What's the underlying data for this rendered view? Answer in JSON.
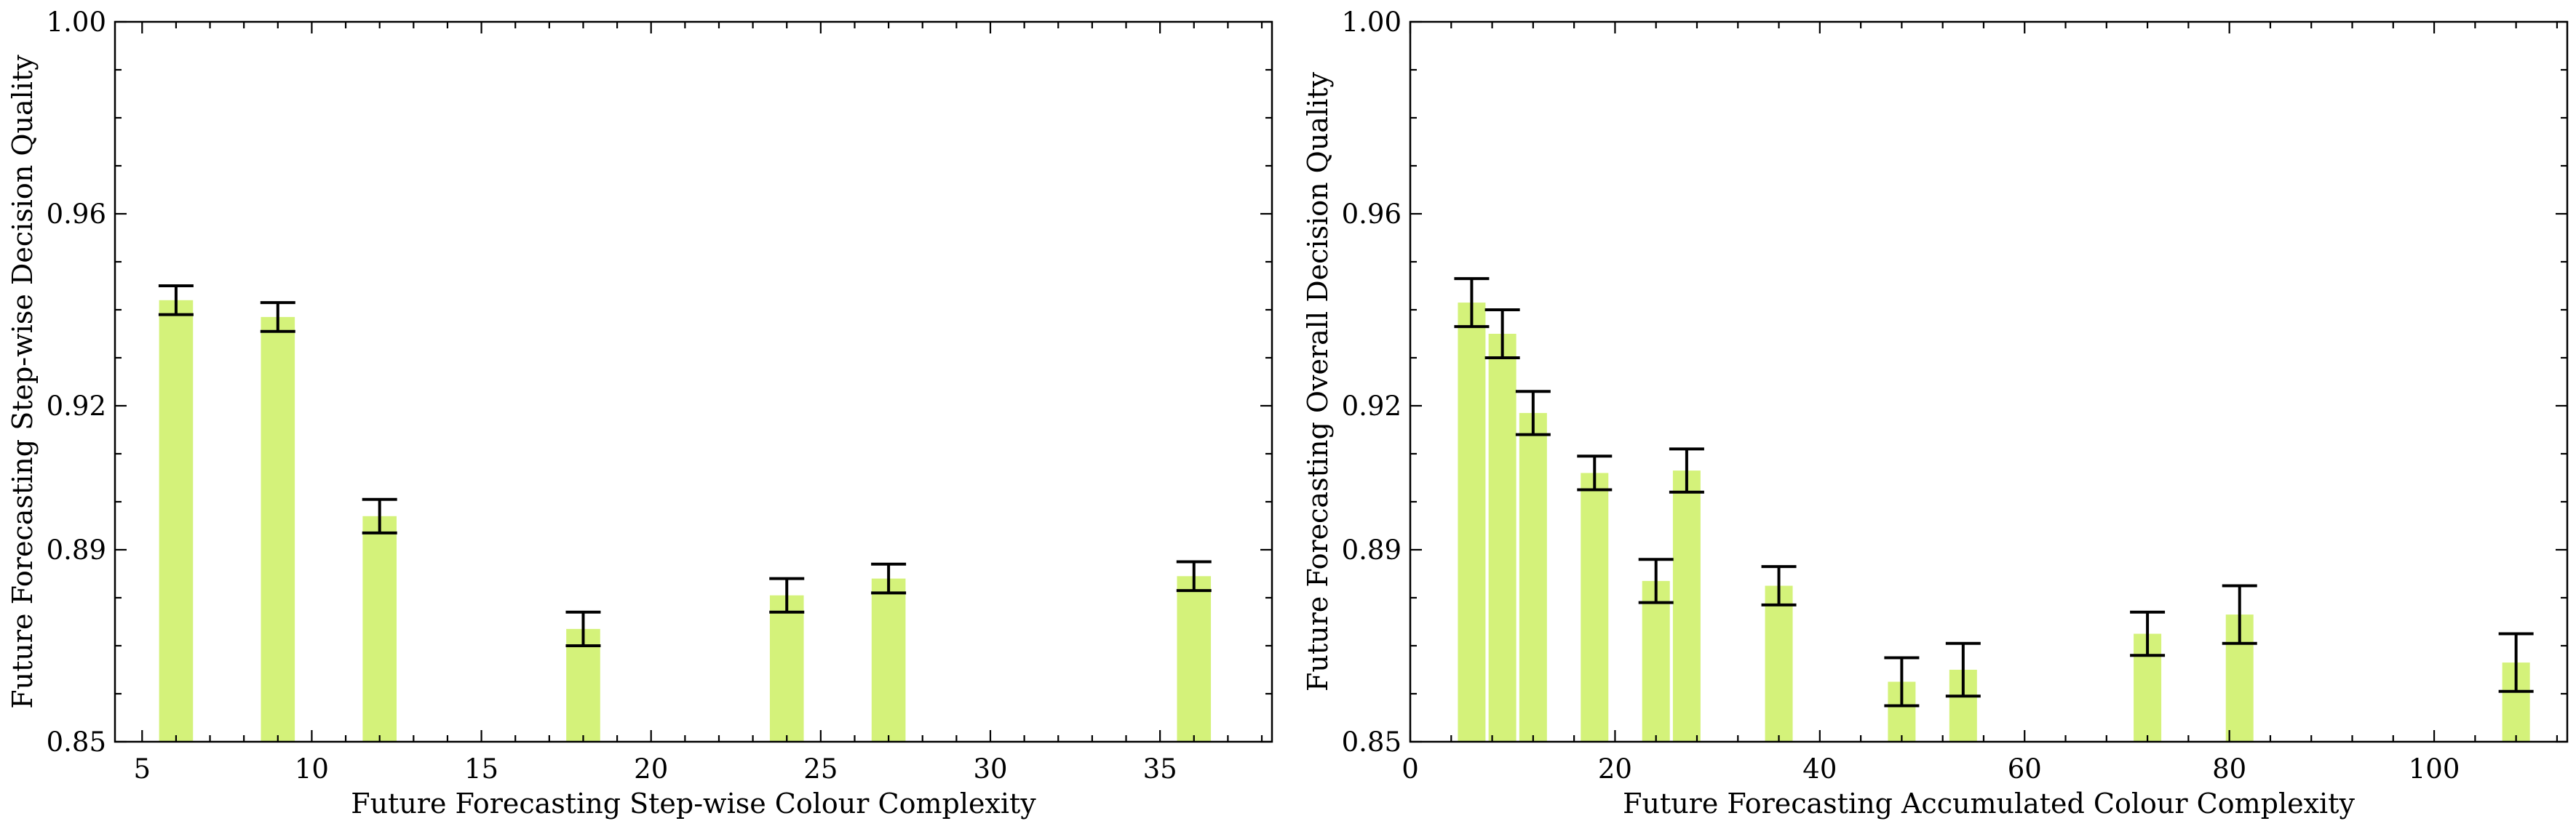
{
  "chart_data": [
    {
      "type": "bar",
      "xlabel": "Future Forecasting Step-wise Colour Complexity",
      "ylabel": "Future Forecasting Step-wise Decision Quality",
      "xlim": [
        4.2,
        38.3
      ],
      "ylim": [
        0.85,
        1.0
      ],
      "xticks": [
        5,
        10,
        15,
        20,
        25,
        30,
        35
      ],
      "xtick_labels": [
        "5",
        "10",
        "15",
        "20",
        "25",
        "30",
        "35"
      ],
      "yticks": [
        0.85,
        0.89,
        0.92,
        0.96,
        1.0
      ],
      "ytick_labels": [
        "0.85",
        "0.89",
        "0.92",
        "0.96",
        "1.00"
      ],
      "bar_width": 1.0,
      "bar_color": "#d4f27a",
      "grid": false,
      "points": [
        {
          "x": 6,
          "y": 0.942,
          "err": 0.003
        },
        {
          "x": 9,
          "y": 0.9385,
          "err": 0.003
        },
        {
          "x": 12,
          "y": 0.897,
          "err": 0.0035
        },
        {
          "x": 18,
          "y": 0.8735,
          "err": 0.0035
        },
        {
          "x": 24,
          "y": 0.8805,
          "err": 0.0035
        },
        {
          "x": 27,
          "y": 0.884,
          "err": 0.003
        },
        {
          "x": 36,
          "y": 0.8845,
          "err": 0.003
        }
      ]
    },
    {
      "type": "bar",
      "xlabel": "Future Forecasting Accumulated Colour Complexity",
      "ylabel": "Future Forecasting Overall Decision Quality",
      "xlim": [
        0,
        113
      ],
      "ylim": [
        0.85,
        1.0
      ],
      "xticks": [
        0,
        20,
        40,
        60,
        80,
        100
      ],
      "xtick_labels": [
        "0",
        "20",
        "40",
        "60",
        "80",
        "100"
      ],
      "yticks": [
        0.85,
        0.89,
        0.92,
        0.96,
        1.0
      ],
      "ytick_labels": [
        "0.85",
        "0.89",
        "0.92",
        "0.96",
        "1.00"
      ],
      "bar_width": 2.7,
      "bar_color": "#d4f27a",
      "grid": false,
      "points": [
        {
          "x": 6,
          "y": 0.9415,
          "err": 0.005
        },
        {
          "x": 9,
          "y": 0.935,
          "err": 0.005
        },
        {
          "x": 12,
          "y": 0.9185,
          "err": 0.0045
        },
        {
          "x": 18,
          "y": 0.906,
          "err": 0.0035
        },
        {
          "x": 24,
          "y": 0.8835,
          "err": 0.0045
        },
        {
          "x": 27,
          "y": 0.9065,
          "err": 0.0045
        },
        {
          "x": 36,
          "y": 0.8825,
          "err": 0.004
        },
        {
          "x": 48,
          "y": 0.8625,
          "err": 0.005
        },
        {
          "x": 54,
          "y": 0.865,
          "err": 0.0055
        },
        {
          "x": 72,
          "y": 0.8725,
          "err": 0.0045
        },
        {
          "x": 81,
          "y": 0.8765,
          "err": 0.006
        },
        {
          "x": 108,
          "y": 0.8665,
          "err": 0.006
        }
      ]
    }
  ]
}
